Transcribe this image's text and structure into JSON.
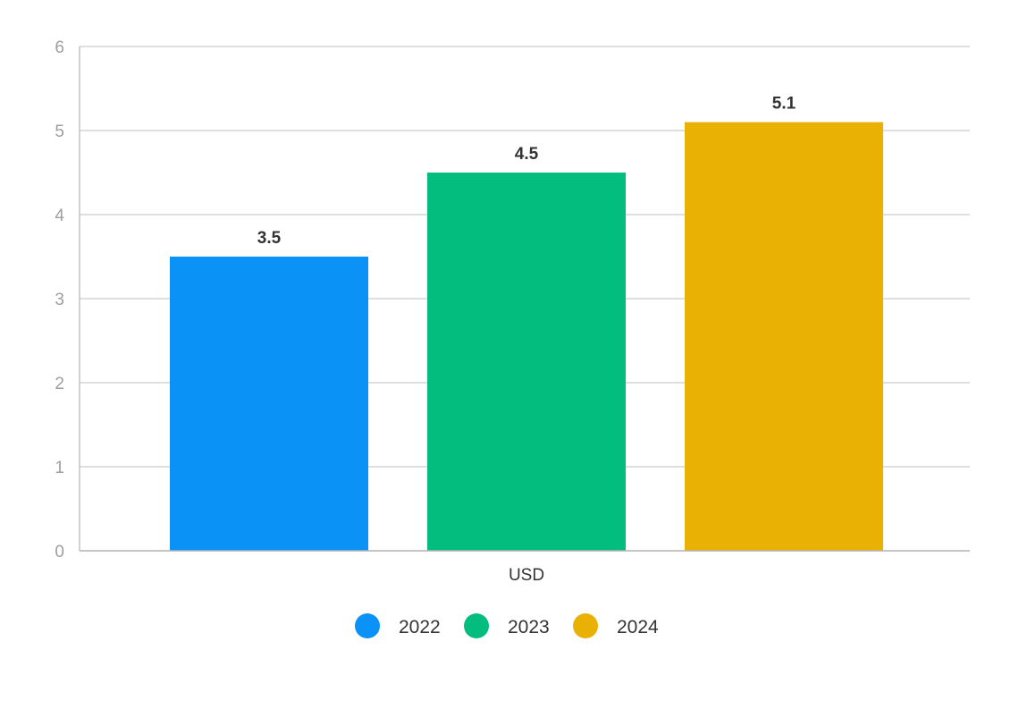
{
  "chart_data": {
    "type": "bar",
    "categories": [
      "USD"
    ],
    "series": [
      {
        "name": "2022",
        "values": [
          3.5
        ],
        "color": "#0a92f7"
      },
      {
        "name": "2023",
        "values": [
          4.5
        ],
        "color": "#03bd7e"
      },
      {
        "name": "2024",
        "values": [
          5.1
        ],
        "color": "#e9b103"
      }
    ],
    "ylim": [
      0,
      6
    ],
    "yticks": [
      "0",
      "1",
      "2",
      "3",
      "4",
      "5",
      "6"
    ],
    "grid": true,
    "legend": "bottom-center",
    "data_labels": [
      "3.5",
      "4.5",
      "5.1"
    ]
  },
  "colors": {
    "grid": "#cccccc",
    "axis": "#b3b3b3",
    "tick_text": "#9e9e9e",
    "label_text": "#333333"
  }
}
